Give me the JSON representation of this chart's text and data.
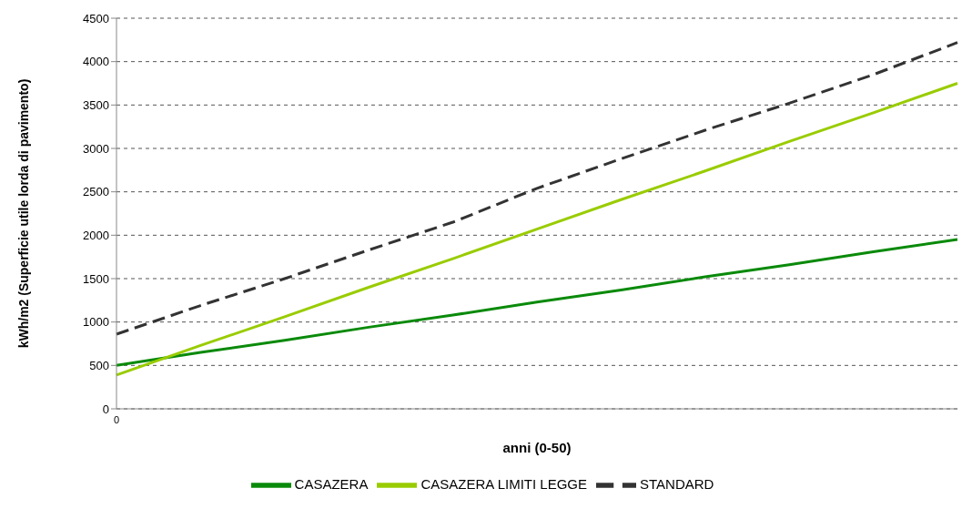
{
  "chart_data": {
    "type": "line",
    "xlabel": "anni (0-50)",
    "ylabel": "kWh/m2 (Superficie utile lorda di pavimento)",
    "categories": [
      "0",
      null,
      null,
      null,
      null,
      null,
      null,
      null,
      null,
      null,
      null
    ],
    "series": [
      {
        "name": "CASAZERA",
        "color": "#0a8a0a",
        "values": [
          500,
          650,
          790,
          940,
          1080,
          1230,
          1370,
          1520,
          1660,
          1810,
          1950
        ]
      },
      {
        "name": "CASAZERA LIMITI LEGGE",
        "color": "#99cc00",
        "values": [
          390,
          730,
          1060,
          1400,
          1730,
          2070,
          2410,
          2740,
          3080,
          3410,
          3750
        ]
      },
      {
        "name": "STANDARD",
        "color": "#333333",
        "line_style": "dashed",
        "values": [
          860,
          1190,
          1500,
          1830,
          2150,
          2540,
          2880,
          3210,
          3520,
          3850,
          4220
        ]
      }
    ],
    "ylim": [
      0,
      4500
    ],
    "yticks": [
      0,
      500,
      1000,
      1500,
      2000,
      2500,
      3000,
      3500,
      4000,
      4500
    ],
    "grid": "y",
    "legend": "bottom",
    "marker": "none",
    "line_style": "solid"
  }
}
